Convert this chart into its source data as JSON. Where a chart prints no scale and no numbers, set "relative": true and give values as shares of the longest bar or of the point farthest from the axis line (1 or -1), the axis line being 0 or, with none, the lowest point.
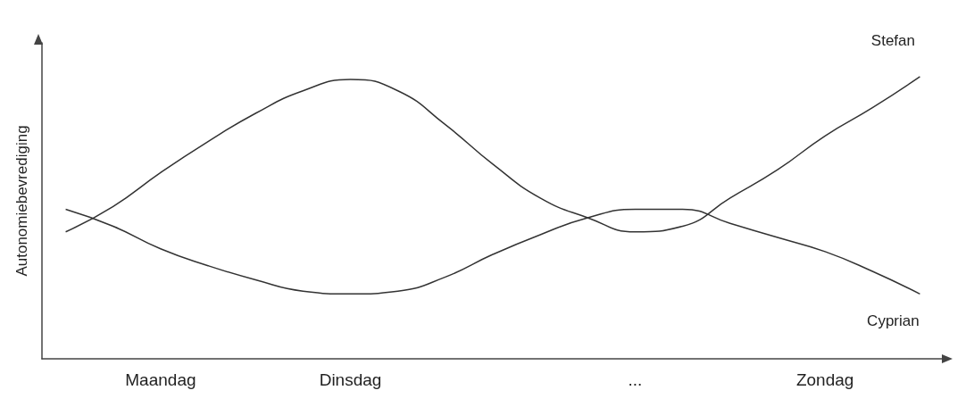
{
  "chart_data": {
    "type": "line",
    "relative": true,
    "ylabel": "Autonomiebevrediging",
    "categories": [
      null,
      null,
      "Maandag",
      null,
      null,
      null,
      "Dinsdag",
      null,
      null,
      null,
      null,
      null,
      "...",
      null,
      null,
      null,
      "Zondag",
      null,
      null
    ],
    "series": [
      {
        "name": "Stefan",
        "color": "#333333",
        "values": [
          0.45,
          0.54,
          0.66,
          0.77,
          0.87,
          0.95,
          0.99,
          0.95,
          0.83,
          0.69,
          0.57,
          0.5,
          0.45,
          0.47,
          0.57,
          0.67,
          0.79,
          0.89,
          1.0
        ]
      },
      {
        "name": "Cyprian",
        "color": "#333333",
        "values": [
          0.53,
          0.47,
          0.39,
          0.33,
          0.28,
          0.24,
          0.23,
          0.24,
          0.29,
          0.37,
          0.44,
          0.5,
          0.53,
          0.53,
          0.48,
          0.43,
          0.38,
          0.31,
          0.23
        ]
      }
    ],
    "legend": false,
    "grid": false,
    "marker": "none",
    "line_style": "solid"
  }
}
